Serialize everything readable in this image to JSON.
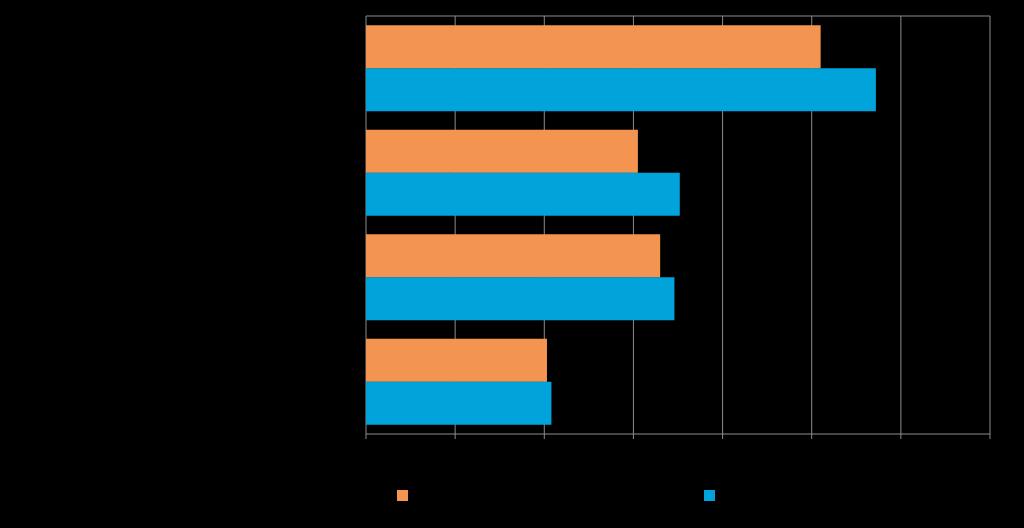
{
  "chart_data": {
    "type": "bar",
    "orientation": "horizontal",
    "categories": [
      "",
      "",
      "",
      ""
    ],
    "series": [
      {
        "name": "",
        "color": "#F39551",
        "values": [
          51,
          30.5,
          33,
          20.3
        ]
      },
      {
        "name": "",
        "color": "#00A3DA",
        "values": [
          57.2,
          35.2,
          34.6,
          20.8
        ]
      }
    ],
    "xlim": [
      0,
      70
    ],
    "grid": true,
    "legend_position": "bottom",
    "title": "",
    "xlabel": "",
    "ylabel": ""
  }
}
